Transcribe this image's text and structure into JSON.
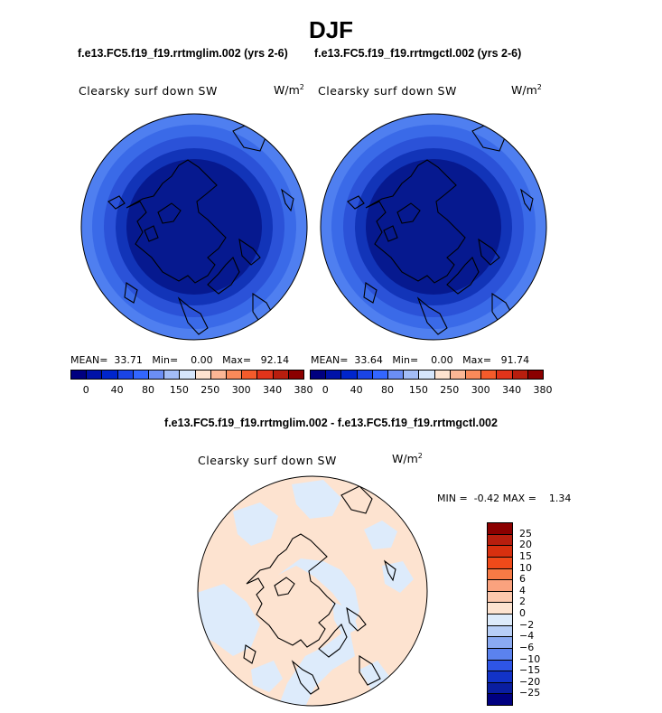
{
  "figure_title": "DJF",
  "panels": [
    {
      "run": "f.e13.FC5.f19_f19.rrtmglim.002 (yrs 2-6)",
      "field": "Clearsky surf down SW",
      "units_base": "W/m",
      "units_exp": "2",
      "stats": {
        "mean_label": "MEAN=",
        "mean": "33.71",
        "min_label": "Min=",
        "min": "0.00",
        "max_label": "Max=",
        "max": "92.14"
      }
    },
    {
      "run": "f.e13.FC5.f19_f19.rrtmgctl.002 (yrs 2-6)",
      "field": "Clearsky surf down SW",
      "units_base": "W/m",
      "units_exp": "2",
      "stats": {
        "mean_label": "MEAN=",
        "mean": "33.64",
        "min_label": "Min=",
        "min": "0.00",
        "max_label": "Max=",
        "max": "91.74"
      }
    }
  ],
  "abs_colorbar": {
    "colors": [
      "#000080",
      "#0012a8",
      "#0025cc",
      "#1a44e6",
      "#3366ff",
      "#6b8ef5",
      "#a3bdf7",
      "#d6e6fb",
      "#fde3d0",
      "#fbb795",
      "#f98a5a",
      "#f45b2b",
      "#e0341a",
      "#b81e0e",
      "#8b0000"
    ],
    "tick_labels": [
      "0",
      "40",
      "80",
      "150",
      "250",
      "300",
      "340",
      "380"
    ]
  },
  "diff": {
    "title": "f.e13.FC5.f19_f19.rrtmglim.002 - f.e13.FC5.f19_f19.rrtmgctl.002",
    "field": "Clearsky surf down SW",
    "units_base": "W/m",
    "units_exp": "2",
    "stats": {
      "min_label": "MIN =",
      "min": "-0.42",
      "max_label": "MAX =",
      "max": "1.34"
    },
    "colorbar": {
      "colors": [
        "#8b0000",
        "#b81e0e",
        "#d8300f",
        "#f04a1a",
        "#f77a45",
        "#faa27e",
        "#fcc8ad",
        "#fde3d0",
        "#ddebfb",
        "#b8cff7",
        "#8aaaf2",
        "#5b82ee",
        "#2e55e6",
        "#1233c8",
        "#0a1ea0",
        "#000080"
      ],
      "tick_labels": [
        "25",
        "20",
        "15",
        "10",
        "6",
        "4",
        "2",
        "0",
        "−2",
        "−4",
        "−6",
        "−10",
        "−15",
        "−20",
        "−25"
      ]
    },
    "colors": {
      "positive": "#fde3d0",
      "negative": "#ddebfb"
    }
  },
  "map_colors": {
    "outer": "#4f7ff0",
    "mid": "#2b52d8",
    "inner": "#0e28a8",
    "core": "#061a8f"
  }
}
